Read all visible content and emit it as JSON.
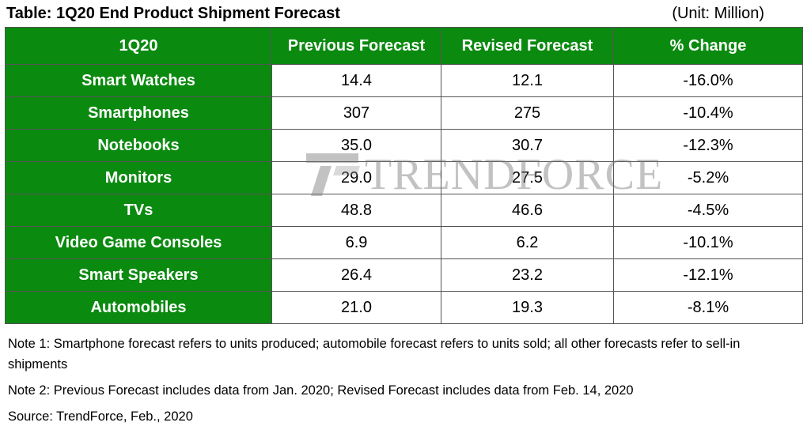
{
  "title": "Table: 1Q20 End Product Shipment Forecast",
  "unit": "(Unit: Million)",
  "watermark": "TRENDFORCE",
  "chart_data": {
    "type": "table",
    "title": "Table: 1Q20 End Product Shipment Forecast",
    "columns": [
      "1Q20",
      "Previous Forecast",
      "Revised Forecast",
      "% Change"
    ],
    "rows": [
      {
        "category": "Smart Watches",
        "previous": "14.4",
        "revised": "12.1",
        "change": "-16.0%"
      },
      {
        "category": "Smartphones",
        "previous": "307",
        "revised": "275",
        "change": "-10.4%"
      },
      {
        "category": "Notebooks",
        "previous": "35.0",
        "revised": "30.7",
        "change": "-12.3%"
      },
      {
        "category": "Monitors",
        "previous": "29.0",
        "revised": "27.5",
        "change": "-5.2%"
      },
      {
        "category": "TVs",
        "previous": "48.8",
        "revised": "46.6",
        "change": "-4.5%"
      },
      {
        "category": "Video Game Consoles",
        "previous": "6.9",
        "revised": "6.2",
        "change": "-10.1%"
      },
      {
        "category": "Smart Speakers",
        "previous": "26.4",
        "revised": "23.2",
        "change": "-12.1%"
      },
      {
        "category": "Automobiles",
        "previous": "21.0",
        "revised": "19.3",
        "change": "-8.1%"
      }
    ]
  },
  "notes": {
    "note1": "Note 1: Smartphone forecast refers to units produced; automobile forecast refers to units sold; all other forecasts refer to sell-in shipments",
    "note2": "Note 2: Previous Forecast includes data from Jan. 2020; Revised Forecast includes data from Feb. 14, 2020",
    "source": "Source: TrendForce, Feb., 2020"
  },
  "colors": {
    "header_bg": "#0b8a10",
    "header_text": "#ffffff"
  }
}
